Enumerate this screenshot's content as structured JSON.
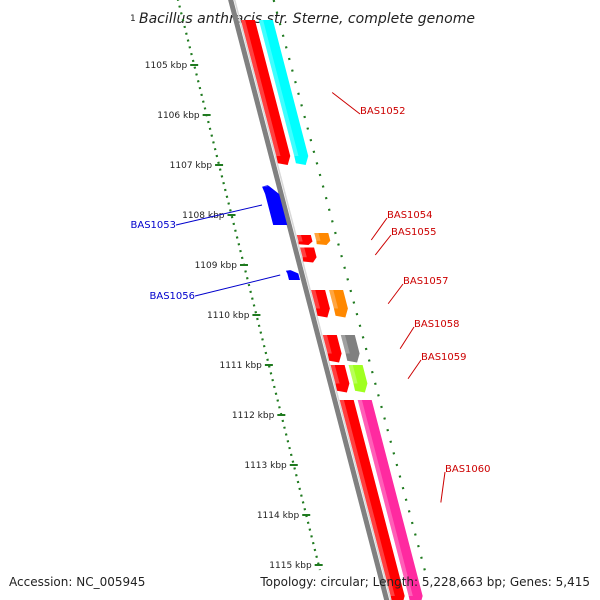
{
  "title": {
    "prefix": "1",
    "text": "Bacillus anthracis str. Sterne, complete genome"
  },
  "footer": {
    "accession": "Accession: NC_005945",
    "summary": "Topology: circular; Length: 5,228,663 bp; Genes: 5,415"
  },
  "colors": {
    "backbone": "#808080",
    "ruler": "#1f7a1f",
    "label_forward": "#cc0000",
    "label_reverse": "#0000cc"
  },
  "ruler": {
    "ticks": [
      {
        "kbp": 1105,
        "label": "1105 kbp"
      },
      {
        "kbp": 1106,
        "label": "1106 kbp"
      },
      {
        "kbp": 1107,
        "label": "1107 kbp"
      },
      {
        "kbp": 1108,
        "label": "1108 kbp"
      },
      {
        "kbp": 1109,
        "label": "1109 kbp"
      },
      {
        "kbp": 1110,
        "label": "1110 kbp"
      },
      {
        "kbp": 1111,
        "label": "1111 kbp"
      },
      {
        "kbp": 1112,
        "label": "1112 kbp"
      },
      {
        "kbp": 1113,
        "label": "1113 kbp"
      },
      {
        "kbp": 1114,
        "label": "1114 kbp"
      },
      {
        "kbp": 1115,
        "label": "1115 kbp"
      }
    ]
  },
  "genes": [
    {
      "label": "BAS1052",
      "strand": "+",
      "start_kbp": 1104.1,
      "end_kbp": 1107.0,
      "gene_color": "#ff0000",
      "cds_color": "#00ffff"
    },
    {
      "label": "BAS1053",
      "strand": "-",
      "start_kbp": 1107.4,
      "end_kbp": 1108.2,
      "gene_color": "#0000ff"
    },
    {
      "label": "BAS1054",
      "strand": "+",
      "start_kbp": 1108.4,
      "end_kbp": 1108.6,
      "gene_color": "#ff0000",
      "cds_color": "#ff8800"
    },
    {
      "label": "BAS1055",
      "strand": "+",
      "start_kbp": 1108.65,
      "end_kbp": 1108.95,
      "gene_color": "#ff0000"
    },
    {
      "label": "BAS1056",
      "strand": "-",
      "start_kbp": 1109.1,
      "end_kbp": 1109.3,
      "gene_color": "#0000ff"
    },
    {
      "label": "BAS1057",
      "strand": "+",
      "start_kbp": 1109.5,
      "end_kbp": 1110.05,
      "gene_color": "#ff0000",
      "cds_color": "#ff8800"
    },
    {
      "label": "BAS1058",
      "strand": "+",
      "start_kbp": 1110.4,
      "end_kbp": 1110.95,
      "gene_color": "#ff0000",
      "cds_color": "#808080"
    },
    {
      "label": "BAS1059",
      "strand": "+",
      "start_kbp": 1111.0,
      "end_kbp": 1111.55,
      "gene_color": "#ff0000",
      "cds_color": "#a0ff20"
    },
    {
      "label": "BAS1060",
      "strand": "+",
      "start_kbp": 1111.7,
      "end_kbp": 1115.8,
      "gene_color": "#ff0000",
      "cds_color": "#ff2aa0"
    }
  ]
}
